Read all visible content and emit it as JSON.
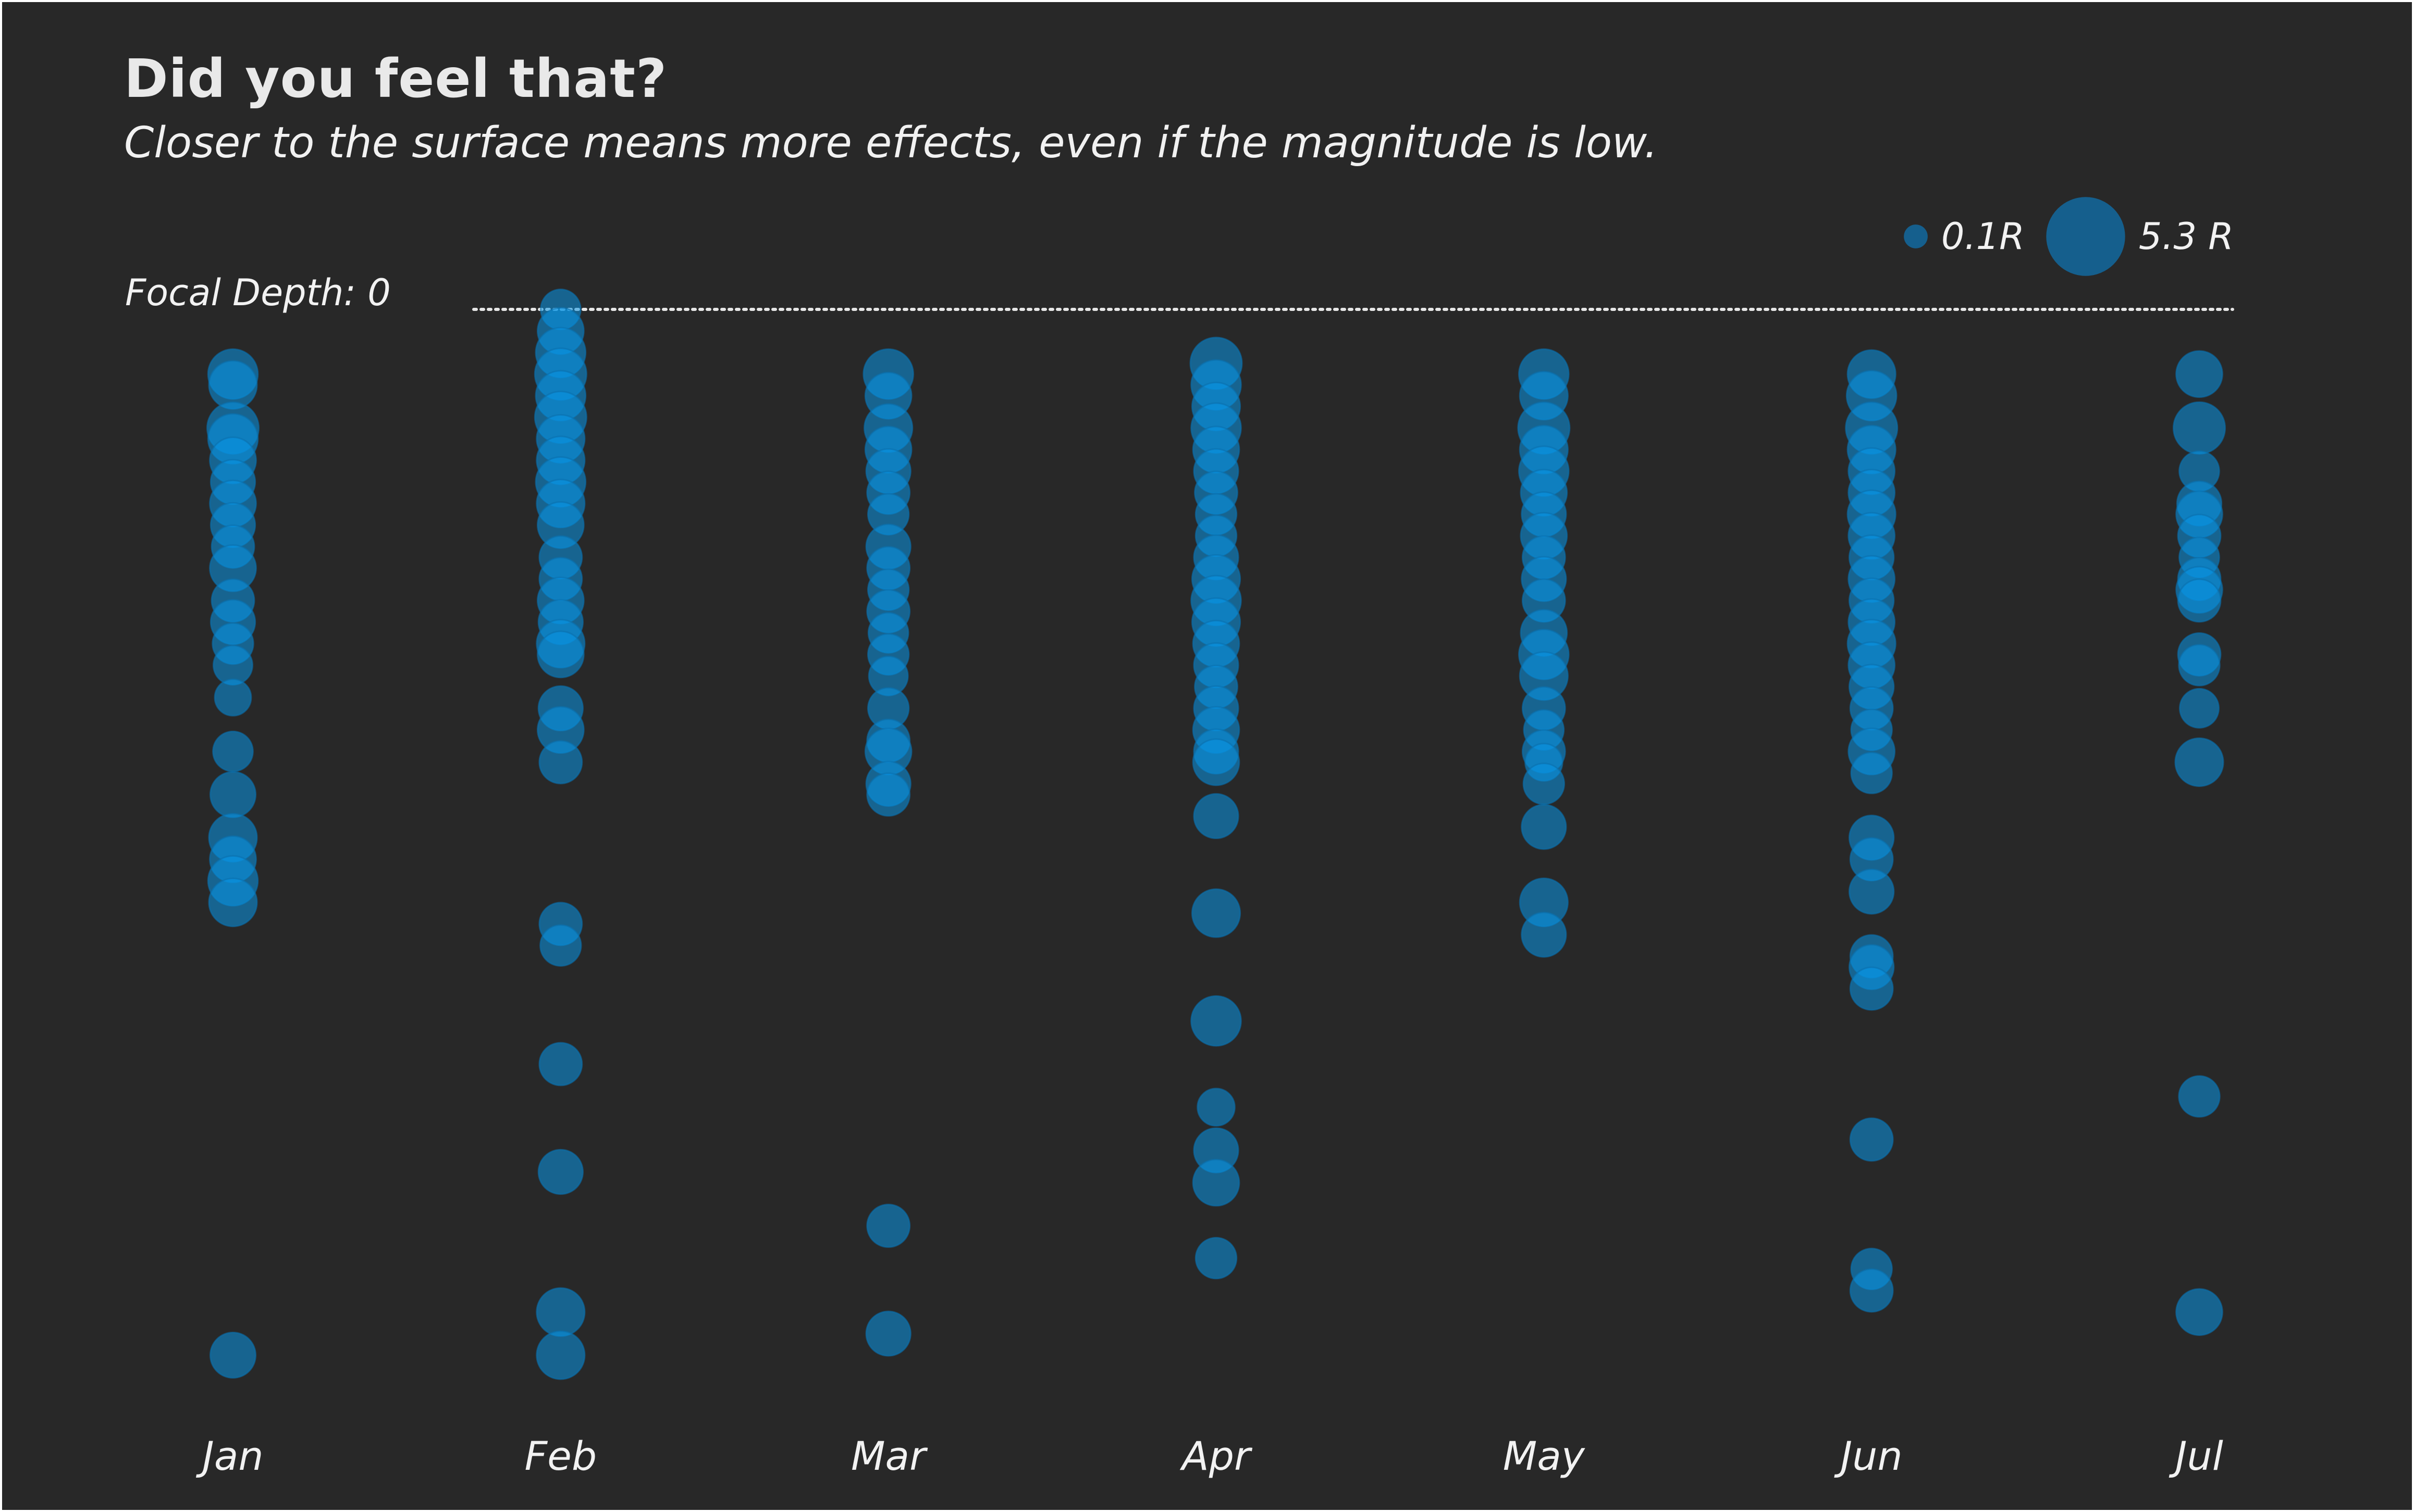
{
  "chart_data": {
    "type": "scatter",
    "title": "Did you feel that?",
    "subtitle": "Closer to the surface means more effects, even if the magnitude is low.",
    "reference_line": {
      "label": "Focal Depth: 0",
      "y": 0,
      "style": "dotted"
    },
    "legend": {
      "placement": "top-right",
      "items": [
        {
          "label": "0.1R",
          "magnitude": 0.1
        },
        {
          "label": "5.3 R",
          "magnitude": 5.3
        }
      ]
    },
    "categories": [
      "Jan",
      "Feb",
      "Mar",
      "Apr",
      "May",
      "Jun",
      "Jul"
    ],
    "y_axis": {
      "quantity": "focal depth",
      "inverted": true,
      "ylim": [
        0,
        100
      ],
      "visible": false
    },
    "colors": {
      "background": "#282828",
      "bubble": "#0a96e6",
      "text": "#f2f2f2"
    },
    "series": [
      {
        "month": "Jan",
        "points": [
          {
            "depth": 6,
            "mag": 3.0
          },
          {
            "depth": 7,
            "mag": 2.8
          },
          {
            "depth": 11,
            "mag": 3.2
          },
          {
            "depth": 12,
            "mag": 3.0
          },
          {
            "depth": 14,
            "mag": 2.6
          },
          {
            "depth": 16,
            "mag": 2.4
          },
          {
            "depth": 18,
            "mag": 2.6
          },
          {
            "depth": 20,
            "mag": 2.4
          },
          {
            "depth": 22,
            "mag": 2.2
          },
          {
            "depth": 24,
            "mag": 2.6
          },
          {
            "depth": 27,
            "mag": 2.2
          },
          {
            "depth": 29,
            "mag": 2.4
          },
          {
            "depth": 31,
            "mag": 2.0
          },
          {
            "depth": 33,
            "mag": 1.8
          },
          {
            "depth": 36,
            "mag": 1.5
          },
          {
            "depth": 41,
            "mag": 1.9
          },
          {
            "depth": 45,
            "mag": 2.5
          },
          {
            "depth": 49,
            "mag": 2.8
          },
          {
            "depth": 51,
            "mag": 2.6
          },
          {
            "depth": 53,
            "mag": 3.0
          },
          {
            "depth": 55,
            "mag": 2.8
          },
          {
            "depth": 97,
            "mag": 2.5
          }
        ]
      },
      {
        "month": "Feb",
        "points": [
          {
            "depth": 0,
            "mag": 1.9
          },
          {
            "depth": 2,
            "mag": 2.6
          },
          {
            "depth": 4,
            "mag": 3.0
          },
          {
            "depth": 6,
            "mag": 3.2
          },
          {
            "depth": 8,
            "mag": 3.0
          },
          {
            "depth": 10,
            "mag": 3.2
          },
          {
            "depth": 12,
            "mag": 2.8
          },
          {
            "depth": 14,
            "mag": 2.8
          },
          {
            "depth": 16,
            "mag": 3.0
          },
          {
            "depth": 18,
            "mag": 2.8
          },
          {
            "depth": 20,
            "mag": 2.6
          },
          {
            "depth": 23,
            "mag": 2.2
          },
          {
            "depth": 25,
            "mag": 2.2
          },
          {
            "depth": 27,
            "mag": 2.6
          },
          {
            "depth": 29,
            "mag": 2.4
          },
          {
            "depth": 31,
            "mag": 2.8
          },
          {
            "depth": 32,
            "mag": 2.6
          },
          {
            "depth": 37,
            "mag": 2.4
          },
          {
            "depth": 39,
            "mag": 2.6
          },
          {
            "depth": 42,
            "mag": 2.2
          },
          {
            "depth": 57,
            "mag": 2.2
          },
          {
            "depth": 59,
            "mag": 2.0
          },
          {
            "depth": 70,
            "mag": 2.2
          },
          {
            "depth": 80,
            "mag": 2.4
          },
          {
            "depth": 93,
            "mag": 2.8
          },
          {
            "depth": 97,
            "mag": 2.8
          }
        ]
      },
      {
        "month": "Mar",
        "points": [
          {
            "depth": 6,
            "mag": 3.0
          },
          {
            "depth": 8,
            "mag": 2.6
          },
          {
            "depth": 11,
            "mag": 2.8
          },
          {
            "depth": 13,
            "mag": 2.6
          },
          {
            "depth": 15,
            "mag": 2.4
          },
          {
            "depth": 17,
            "mag": 2.2
          },
          {
            "depth": 19,
            "mag": 2.0
          },
          {
            "depth": 22,
            "mag": 2.4
          },
          {
            "depth": 24,
            "mag": 2.2
          },
          {
            "depth": 26,
            "mag": 2.0
          },
          {
            "depth": 28,
            "mag": 2.2
          },
          {
            "depth": 30,
            "mag": 1.9
          },
          {
            "depth": 32,
            "mag": 2.0
          },
          {
            "depth": 34,
            "mag": 1.8
          },
          {
            "depth": 37,
            "mag": 2.0
          },
          {
            "depth": 40,
            "mag": 2.2
          },
          {
            "depth": 41,
            "mag": 2.6
          },
          {
            "depth": 44,
            "mag": 2.4
          },
          {
            "depth": 45,
            "mag": 2.2
          },
          {
            "depth": 85,
            "mag": 2.2
          },
          {
            "depth": 95,
            "mag": 2.4
          }
        ]
      },
      {
        "month": "Apr",
        "points": [
          {
            "depth": 5,
            "mag": 3.2
          },
          {
            "depth": 7,
            "mag": 3.0
          },
          {
            "depth": 9,
            "mag": 2.8
          },
          {
            "depth": 11,
            "mag": 3.0
          },
          {
            "depth": 13,
            "mag": 2.6
          },
          {
            "depth": 15,
            "mag": 2.4
          },
          {
            "depth": 17,
            "mag": 2.2
          },
          {
            "depth": 19,
            "mag": 2.0
          },
          {
            "depth": 21,
            "mag": 2.0
          },
          {
            "depth": 23,
            "mag": 2.4
          },
          {
            "depth": 25,
            "mag": 2.8
          },
          {
            "depth": 27,
            "mag": 3.0
          },
          {
            "depth": 29,
            "mag": 2.8
          },
          {
            "depth": 31,
            "mag": 2.6
          },
          {
            "depth": 33,
            "mag": 2.4
          },
          {
            "depth": 35,
            "mag": 2.2
          },
          {
            "depth": 37,
            "mag": 2.4
          },
          {
            "depth": 39,
            "mag": 2.6
          },
          {
            "depth": 41,
            "mag": 2.4
          },
          {
            "depth": 42,
            "mag": 2.6
          },
          {
            "depth": 47,
            "mag": 2.4
          },
          {
            "depth": 56,
            "mag": 2.8
          },
          {
            "depth": 66,
            "mag": 3.0
          },
          {
            "depth": 74,
            "mag": 1.6
          },
          {
            "depth": 78,
            "mag": 2.4
          },
          {
            "depth": 81,
            "mag": 2.6
          },
          {
            "depth": 88,
            "mag": 2.0
          }
        ]
      },
      {
        "month": "May",
        "points": [
          {
            "depth": 6,
            "mag": 3.0
          },
          {
            "depth": 8,
            "mag": 2.8
          },
          {
            "depth": 11,
            "mag": 3.2
          },
          {
            "depth": 13,
            "mag": 2.8
          },
          {
            "depth": 15,
            "mag": 3.0
          },
          {
            "depth": 17,
            "mag": 2.6
          },
          {
            "depth": 19,
            "mag": 2.4
          },
          {
            "depth": 21,
            "mag": 2.6
          },
          {
            "depth": 23,
            "mag": 2.2
          },
          {
            "depth": 25,
            "mag": 2.4
          },
          {
            "depth": 27,
            "mag": 2.2
          },
          {
            "depth": 30,
            "mag": 2.6
          },
          {
            "depth": 32,
            "mag": 3.0
          },
          {
            "depth": 34,
            "mag": 2.8
          },
          {
            "depth": 37,
            "mag": 2.2
          },
          {
            "depth": 39,
            "mag": 1.9
          },
          {
            "depth": 41,
            "mag": 2.2
          },
          {
            "depth": 42,
            "mag": 1.6
          },
          {
            "depth": 44,
            "mag": 2.0
          },
          {
            "depth": 48,
            "mag": 2.4
          },
          {
            "depth": 55,
            "mag": 2.8
          },
          {
            "depth": 58,
            "mag": 2.4
          }
        ]
      },
      {
        "month": "Jun",
        "points": [
          {
            "depth": 6,
            "mag": 2.8
          },
          {
            "depth": 8,
            "mag": 3.0
          },
          {
            "depth": 11,
            "mag": 3.2
          },
          {
            "depth": 13,
            "mag": 2.8
          },
          {
            "depth": 15,
            "mag": 2.6
          },
          {
            "depth": 17,
            "mag": 2.6
          },
          {
            "depth": 19,
            "mag": 2.8
          },
          {
            "depth": 21,
            "mag": 2.6
          },
          {
            "depth": 23,
            "mag": 2.4
          },
          {
            "depth": 25,
            "mag": 2.6
          },
          {
            "depth": 27,
            "mag": 2.4
          },
          {
            "depth": 29,
            "mag": 2.6
          },
          {
            "depth": 31,
            "mag": 2.8
          },
          {
            "depth": 33,
            "mag": 2.6
          },
          {
            "depth": 35,
            "mag": 2.4
          },
          {
            "depth": 37,
            "mag": 2.2
          },
          {
            "depth": 39,
            "mag": 2.0
          },
          {
            "depth": 41,
            "mag": 2.6
          },
          {
            "depth": 43,
            "mag": 2.0
          },
          {
            "depth": 49,
            "mag": 2.4
          },
          {
            "depth": 51,
            "mag": 2.2
          },
          {
            "depth": 54,
            "mag": 2.4
          },
          {
            "depth": 60,
            "mag": 2.2
          },
          {
            "depth": 61,
            "mag": 2.4
          },
          {
            "depth": 63,
            "mag": 2.2
          },
          {
            "depth": 77,
            "mag": 2.2
          },
          {
            "depth": 89,
            "mag": 2.0
          },
          {
            "depth": 91,
            "mag": 2.2
          }
        ]
      },
      {
        "month": "Jul",
        "points": [
          {
            "depth": 6,
            "mag": 2.6
          },
          {
            "depth": 11,
            "mag": 3.2
          },
          {
            "depth": 15,
            "mag": 1.9
          },
          {
            "depth": 18,
            "mag": 2.4
          },
          {
            "depth": 19,
            "mag": 2.6
          },
          {
            "depth": 21,
            "mag": 2.2
          },
          {
            "depth": 23,
            "mag": 1.9
          },
          {
            "depth": 25,
            "mag": 2.2
          },
          {
            "depth": 26,
            "mag": 2.6
          },
          {
            "depth": 27,
            "mag": 2.2
          },
          {
            "depth": 32,
            "mag": 2.2
          },
          {
            "depth": 33,
            "mag": 2.0
          },
          {
            "depth": 37,
            "mag": 1.8
          },
          {
            "depth": 42,
            "mag": 2.8
          },
          {
            "depth": 73,
            "mag": 2.0
          },
          {
            "depth": 93,
            "mag": 2.6
          }
        ]
      }
    ]
  }
}
